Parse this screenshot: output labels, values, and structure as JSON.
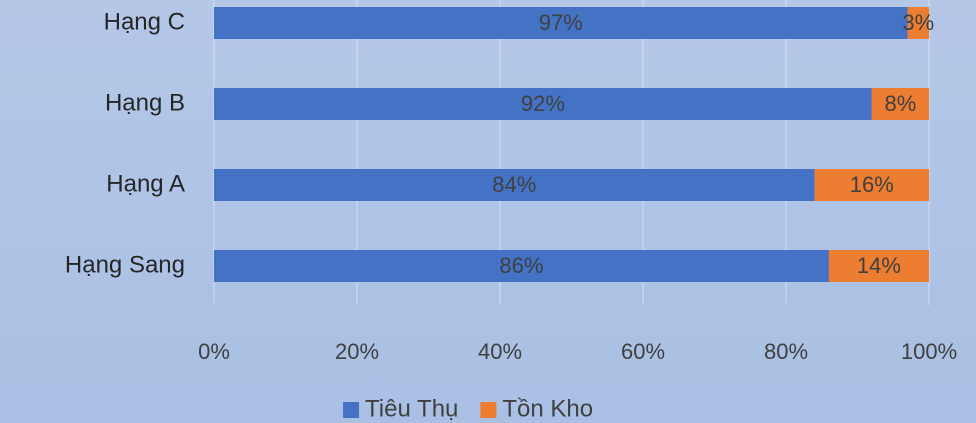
{
  "chart_data": {
    "type": "bar",
    "orientation": "horizontal",
    "stacked": true,
    "categories": [
      "Hạng Sang",
      "Hạng A",
      "Hạng B",
      "Hạng C"
    ],
    "series": [
      {
        "name": "Tiêu Thụ",
        "color": "#4472c4",
        "values": [
          86,
          84,
          92,
          97
        ],
        "value_labels": [
          "86%",
          "84%",
          "92%",
          "97%"
        ]
      },
      {
        "name": "Tồn Kho",
        "color": "#ed7d31",
        "values": [
          14,
          16,
          8,
          3
        ],
        "value_labels": [
          "14%",
          "16%",
          "8%",
          "3%"
        ]
      }
    ],
    "xlim": [
      0,
      100
    ],
    "xticks": [
      {
        "value": 0,
        "label": "0%"
      },
      {
        "value": 20,
        "label": "20%"
      },
      {
        "value": 40,
        "label": "40%"
      },
      {
        "value": 60,
        "label": "60%"
      },
      {
        "value": 80,
        "label": "80%"
      },
      {
        "value": 100,
        "label": "100%"
      }
    ],
    "grid": true,
    "legend": "bottom"
  }
}
